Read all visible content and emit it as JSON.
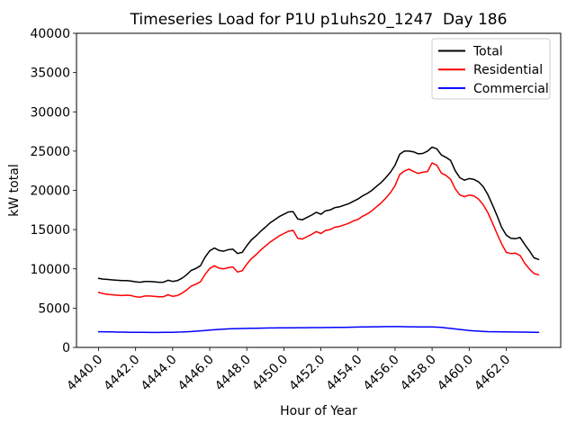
{
  "chart_data": {
    "type": "line",
    "title": "Timeseries Load for P1U p1uhs20_1247  Day 186",
    "xlabel": "Hour of Year",
    "ylabel": "kW total",
    "xlim": [
      4438.81,
      4464.94
    ],
    "ylim": [
      0,
      40000
    ],
    "grid": false,
    "x_start": 4440.0,
    "x_step": 0.25,
    "xticks": [
      4440,
      4442,
      4444,
      4446,
      4448,
      4450,
      4452,
      4454,
      4456,
      4458,
      4460,
      4462
    ],
    "xtick_labels": [
      "4440.0",
      "4442.0",
      "4444.0",
      "4446.0",
      "4448.0",
      "4450.0",
      "4452.0",
      "4454.0",
      "4456.0",
      "4458.0",
      "4460.0",
      "4462.0"
    ],
    "yticks": [
      0,
      5000,
      10000,
      15000,
      20000,
      25000,
      30000,
      35000,
      40000
    ],
    "ytick_labels": [
      "0",
      "5000",
      "10000",
      "15000",
      "20000",
      "25000",
      "30000",
      "35000",
      "40000"
    ],
    "legend": {
      "position": "upper right",
      "entries": [
        "Total",
        "Residential",
        "Commercial"
      ]
    },
    "series": [
      {
        "name": "Total",
        "color": "#000000",
        "values": [
          8800,
          8700,
          8650,
          8600,
          8550,
          8500,
          8500,
          8450,
          8350,
          8300,
          8400,
          8400,
          8350,
          8300,
          8300,
          8550,
          8400,
          8500,
          8800,
          9250,
          9800,
          10050,
          10400,
          11500,
          12300,
          12650,
          12350,
          12250,
          12450,
          12500,
          11950,
          12100,
          12950,
          13700,
          14200,
          14800,
          15300,
          15850,
          16250,
          16650,
          16950,
          17250,
          17300,
          16350,
          16250,
          16550,
          16850,
          17200,
          16950,
          17400,
          17500,
          17800,
          17900,
          18100,
          18300,
          18600,
          18900,
          19300,
          19600,
          20000,
          20500,
          21000,
          21600,
          22300,
          23200,
          24600,
          25000,
          25000,
          24900,
          24650,
          24700,
          25000,
          25500,
          25300,
          24500,
          24200,
          23800,
          22500,
          21600,
          21300,
          21500,
          21400,
          21100,
          20500,
          19500,
          18200,
          16800,
          15300,
          14300,
          13900,
          13850,
          14000,
          13100,
          12300,
          11400,
          11200
        ]
      },
      {
        "name": "Residential",
        "color": "#ff0000",
        "values": [
          7000,
          6850,
          6750,
          6700,
          6650,
          6600,
          6650,
          6600,
          6450,
          6400,
          6550,
          6550,
          6500,
          6450,
          6450,
          6700,
          6500,
          6600,
          6900,
          7300,
          7800,
          8050,
          8350,
          9300,
          10050,
          10400,
          10100,
          10000,
          10150,
          10250,
          9600,
          9750,
          10600,
          11300,
          11800,
          12400,
          12900,
          13400,
          13800,
          14200,
          14500,
          14800,
          14900,
          13900,
          13800,
          14100,
          14400,
          14750,
          14500,
          14900,
          15000,
          15300,
          15400,
          15600,
          15800,
          16100,
          16300,
          16700,
          17000,
          17400,
          17900,
          18400,
          19000,
          19700,
          20600,
          22000,
          22450,
          22700,
          22400,
          22150,
          22300,
          22400,
          23500,
          23200,
          22200,
          21900,
          21400,
          20200,
          19400,
          19200,
          19400,
          19300,
          18900,
          18200,
          17200,
          15900,
          14500,
          13200,
          12100,
          11950,
          12000,
          11700,
          10700,
          10000,
          9400,
          9250
        ]
      },
      {
        "name": "Commercial",
        "color": "#0000ff",
        "values": [
          2000,
          1990,
          1980,
          1970,
          1950,
          1945,
          1940,
          1930,
          1920,
          1915,
          1910,
          1905,
          1900,
          1905,
          1910,
          1920,
          1930,
          1945,
          1960,
          1990,
          2020,
          2060,
          2110,
          2160,
          2210,
          2250,
          2290,
          2330,
          2360,
          2380,
          2400,
          2410,
          2420,
          2430,
          2440,
          2450,
          2460,
          2470,
          2480,
          2490,
          2500,
          2500,
          2500,
          2510,
          2510,
          2510,
          2520,
          2520,
          2520,
          2530,
          2530,
          2540,
          2550,
          2560,
          2570,
          2580,
          2590,
          2600,
          2610,
          2620,
          2630,
          2640,
          2650,
          2650,
          2650,
          2650,
          2640,
          2630,
          2620,
          2610,
          2600,
          2600,
          2600,
          2580,
          2540,
          2480,
          2420,
          2350,
          2280,
          2220,
          2160,
          2110,
          2070,
          2040,
          2010,
          2000,
          1990,
          1980,
          1970,
          1960,
          1955,
          1950,
          1945,
          1940,
          1930,
          1920
        ]
      }
    ]
  }
}
